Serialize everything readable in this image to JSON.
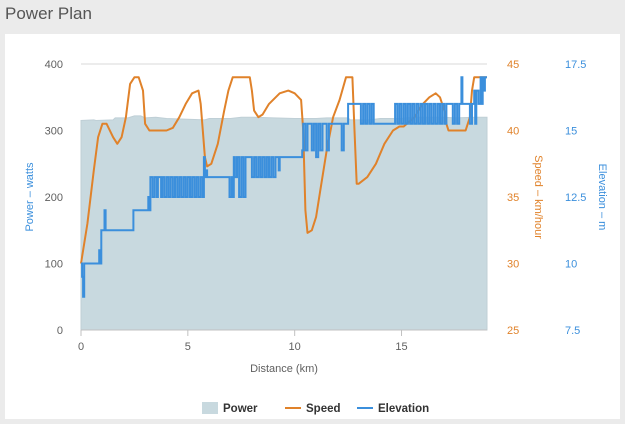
{
  "panel": {
    "title": "Power Plan"
  },
  "colors": {
    "power": "#c8d9df",
    "power_line": "#bfcfd6",
    "speed": "#e0822a",
    "elevation": "#3b8fdc",
    "grid": "#d9d9d9",
    "axis_text": "#606060"
  },
  "chart_data": {
    "type": "area",
    "xlabel": "Distance (km)",
    "xlim": [
      0,
      19
    ],
    "x_ticks": [
      "0",
      "5",
      "10",
      "15"
    ],
    "x_tick_values": [
      0,
      5,
      10,
      15
    ],
    "y_axes": [
      {
        "id": "power",
        "label": "Power – watts",
        "range": [
          0,
          400
        ],
        "ticks": [
          "0",
          "100",
          "200",
          "300",
          "400"
        ],
        "tick_values": [
          0,
          100,
          200,
          300,
          400
        ],
        "side": "left"
      },
      {
        "id": "speed",
        "label": "Speed – km/hour",
        "range": [
          25,
          45
        ],
        "ticks": [
          "25",
          "30",
          "35",
          "40",
          "45"
        ],
        "tick_values": [
          25,
          30,
          35,
          40,
          45
        ],
        "side": "right"
      },
      {
        "id": "elevation",
        "label": "Elevation – m",
        "range": [
          7.5,
          17.5
        ],
        "ticks": [
          "7.5",
          "10",
          "12.5",
          "15",
          "17.5"
        ],
        "tick_values": [
          7.5,
          10,
          12.5,
          15,
          17.5
        ],
        "side": "right"
      }
    ],
    "grid": true,
    "legend": {
      "placement": "bottom-center"
    },
    "series": [
      {
        "name": "Power",
        "type": "area",
        "axis": "power",
        "points": [
          [
            0,
            315
          ],
          [
            0.6,
            316
          ],
          [
            0.7,
            315
          ],
          [
            1.5,
            316
          ],
          [
            1.6,
            319
          ],
          [
            2.2,
            319
          ],
          [
            2.5,
            322
          ],
          [
            2.8,
            322
          ],
          [
            3.0,
            319
          ],
          [
            3.5,
            320
          ],
          [
            4.0,
            318
          ],
          [
            5.0,
            317
          ],
          [
            5.8,
            316
          ],
          [
            6.0,
            318
          ],
          [
            7.0,
            318
          ],
          [
            7.5,
            320
          ],
          [
            8.0,
            320
          ],
          [
            9.0,
            319
          ],
          [
            10.0,
            318
          ],
          [
            11.0,
            318
          ],
          [
            11.5,
            319
          ],
          [
            12.5,
            319
          ],
          [
            12.6,
            316
          ],
          [
            13.5,
            316
          ],
          [
            14.0,
            318
          ],
          [
            15.0,
            318
          ],
          [
            15.5,
            320
          ],
          [
            17.0,
            320
          ],
          [
            17.5,
            319
          ],
          [
            18.5,
            320
          ],
          [
            19,
            320
          ]
        ]
      },
      {
        "name": "Speed",
        "type": "line",
        "axis": "speed",
        "points": [
          [
            0,
            30
          ],
          [
            0.3,
            33
          ],
          [
            0.6,
            37
          ],
          [
            0.8,
            39.5
          ],
          [
            1.0,
            40.5
          ],
          [
            1.2,
            40.5
          ],
          [
            1.5,
            39.5
          ],
          [
            1.7,
            39
          ],
          [
            1.9,
            39.5
          ],
          [
            2.1,
            41
          ],
          [
            2.3,
            43.5
          ],
          [
            2.5,
            44
          ],
          [
            2.7,
            44
          ],
          [
            2.9,
            43
          ],
          [
            3.0,
            40.5
          ],
          [
            3.2,
            40
          ],
          [
            4.0,
            40
          ],
          [
            4.3,
            40.2
          ],
          [
            4.6,
            41
          ],
          [
            4.9,
            42
          ],
          [
            5.2,
            42.8
          ],
          [
            5.5,
            43
          ],
          [
            5.6,
            42
          ],
          [
            5.7,
            40
          ],
          [
            5.8,
            38
          ],
          [
            5.9,
            37.3
          ],
          [
            6.1,
            37.5
          ],
          [
            6.4,
            39
          ],
          [
            6.7,
            41.5
          ],
          [
            6.9,
            43
          ],
          [
            7.1,
            44
          ],
          [
            7.9,
            44
          ],
          [
            8.0,
            43
          ],
          [
            8.1,
            41.5
          ],
          [
            8.3,
            41
          ],
          [
            8.5,
            41.2
          ],
          [
            8.8,
            42
          ],
          [
            9.3,
            42.8
          ],
          [
            9.7,
            43
          ],
          [
            10.0,
            42.8
          ],
          [
            10.3,
            42.3
          ],
          [
            10.4,
            40
          ],
          [
            10.5,
            34
          ],
          [
            10.6,
            32.3
          ],
          [
            10.8,
            32.5
          ],
          [
            11.0,
            33.5
          ],
          [
            11.2,
            35.5
          ],
          [
            11.5,
            38.5
          ],
          [
            11.8,
            41
          ],
          [
            12.1,
            42.3
          ],
          [
            12.4,
            44
          ],
          [
            12.7,
            44
          ],
          [
            12.8,
            40
          ],
          [
            12.9,
            36
          ],
          [
            13.0,
            36
          ],
          [
            13.4,
            36.5
          ],
          [
            13.8,
            37.5
          ],
          [
            14.2,
            39
          ],
          [
            14.6,
            40
          ],
          [
            14.9,
            40.3
          ],
          [
            15.1,
            40.3
          ],
          [
            15.6,
            41
          ],
          [
            16.0,
            42
          ],
          [
            16.3,
            42.5
          ],
          [
            16.6,
            42.8
          ],
          [
            16.8,
            42.5
          ],
          [
            17.0,
            41.5
          ],
          [
            17.1,
            40.5
          ],
          [
            17.2,
            40
          ],
          [
            18.0,
            40
          ],
          [
            18.2,
            41
          ],
          [
            18.3,
            43
          ],
          [
            18.4,
            44
          ],
          [
            19,
            44
          ]
        ]
      },
      {
        "name": "Elevation",
        "type": "line",
        "axis": "elevation",
        "step": true,
        "points": [
          [
            0,
            10
          ],
          [
            0.05,
            9.5
          ],
          [
            0.1,
            8.75
          ],
          [
            0.15,
            10
          ],
          [
            0.8,
            10
          ],
          [
            0.85,
            10.5
          ],
          [
            0.9,
            10
          ],
          [
            0.95,
            11.25
          ],
          [
            1.05,
            11.25
          ],
          [
            1.1,
            12
          ],
          [
            1.15,
            11.25
          ],
          [
            2.4,
            11.25
          ],
          [
            2.45,
            12
          ],
          [
            3.1,
            12
          ],
          [
            3.15,
            12.5
          ],
          [
            3.2,
            12
          ],
          [
            3.25,
            13.25
          ],
          [
            3.35,
            12.5
          ],
          [
            3.45,
            13.25
          ],
          [
            3.55,
            12.5
          ],
          [
            3.6,
            13.25
          ],
          [
            3.7,
            13.25
          ],
          [
            3.75,
            12.5
          ],
          [
            3.8,
            13.25
          ],
          [
            3.9,
            12.5
          ],
          [
            4.0,
            13.25
          ],
          [
            4.1,
            12.5
          ],
          [
            4.2,
            13.25
          ],
          [
            4.3,
            12.5
          ],
          [
            4.4,
            13.25
          ],
          [
            4.5,
            12.5
          ],
          [
            4.6,
            13.25
          ],
          [
            4.7,
            12.5
          ],
          [
            4.8,
            13.25
          ],
          [
            4.9,
            12.5
          ],
          [
            5.0,
            13.25
          ],
          [
            5.1,
            12.5
          ],
          [
            5.2,
            13.25
          ],
          [
            5.3,
            12.5
          ],
          [
            5.4,
            13.25
          ],
          [
            5.5,
            12.5
          ],
          [
            5.6,
            13.25
          ],
          [
            5.7,
            12.5
          ],
          [
            5.75,
            14
          ],
          [
            5.8,
            13.25
          ],
          [
            5.85,
            13.5
          ],
          [
            5.9,
            13.25
          ],
          [
            6.9,
            13.25
          ],
          [
            6.95,
            12.5
          ],
          [
            7.05,
            13.25
          ],
          [
            7.1,
            12.5
          ],
          [
            7.15,
            14
          ],
          [
            7.2,
            13.25
          ],
          [
            7.3,
            14
          ],
          [
            7.4,
            12.5
          ],
          [
            7.5,
            14
          ],
          [
            7.6,
            12.5
          ],
          [
            7.7,
            14
          ],
          [
            7.85,
            14
          ],
          [
            7.9,
            14
          ],
          [
            8.0,
            13.25
          ],
          [
            8.1,
            14
          ],
          [
            8.2,
            13.25
          ],
          [
            8.3,
            14
          ],
          [
            8.4,
            13.25
          ],
          [
            8.5,
            14
          ],
          [
            8.6,
            13.25
          ],
          [
            8.7,
            14
          ],
          [
            8.8,
            13.25
          ],
          [
            8.9,
            14
          ],
          [
            9.0,
            13.25
          ],
          [
            9.1,
            14
          ],
          [
            9.2,
            14
          ],
          [
            9.25,
            13.5
          ],
          [
            9.3,
            14
          ],
          [
            10.3,
            14
          ],
          [
            10.35,
            14.25
          ],
          [
            10.4,
            15.25
          ],
          [
            10.5,
            14.25
          ],
          [
            10.6,
            15.25
          ],
          [
            10.7,
            15.25
          ],
          [
            10.8,
            14.25
          ],
          [
            10.9,
            15.25
          ],
          [
            11.0,
            14
          ],
          [
            11.1,
            15.25
          ],
          [
            11.2,
            14.25
          ],
          [
            11.3,
            15.25
          ],
          [
            11.4,
            15.25
          ],
          [
            11.5,
            14.25
          ],
          [
            11.6,
            15.25
          ],
          [
            12.0,
            15.25
          ],
          [
            12.1,
            15.25
          ],
          [
            12.2,
            14.25
          ],
          [
            12.3,
            15.25
          ],
          [
            12.4,
            15.25
          ],
          [
            12.5,
            16
          ],
          [
            13.0,
            16
          ],
          [
            13.1,
            15.25
          ],
          [
            13.2,
            16
          ],
          [
            13.3,
            15.25
          ],
          [
            13.4,
            16
          ],
          [
            13.5,
            15.25
          ],
          [
            13.6,
            16
          ],
          [
            13.7,
            15.25
          ],
          [
            13.8,
            15.25
          ],
          [
            14.6,
            15.25
          ],
          [
            14.7,
            16
          ],
          [
            14.8,
            15.25
          ],
          [
            14.9,
            16
          ],
          [
            15.0,
            15.25
          ],
          [
            15.1,
            16
          ],
          [
            15.2,
            15.25
          ],
          [
            15.3,
            16
          ],
          [
            15.4,
            15.25
          ],
          [
            15.5,
            16
          ],
          [
            15.6,
            15.25
          ],
          [
            15.7,
            16
          ],
          [
            15.8,
            15.25
          ],
          [
            15.9,
            16
          ],
          [
            16.0,
            15.25
          ],
          [
            16.1,
            16
          ],
          [
            16.2,
            15.25
          ],
          [
            16.3,
            16
          ],
          [
            16.4,
            15.25
          ],
          [
            16.5,
            16
          ],
          [
            16.6,
            15.25
          ],
          [
            16.7,
            16
          ],
          [
            16.8,
            15.25
          ],
          [
            16.9,
            16
          ],
          [
            17.0,
            15.25
          ],
          [
            17.1,
            16
          ],
          [
            17.2,
            16
          ],
          [
            17.3,
            16
          ],
          [
            17.4,
            15.25
          ],
          [
            17.5,
            16
          ],
          [
            17.6,
            15.25
          ],
          [
            17.7,
            16
          ],
          [
            17.8,
            17
          ],
          [
            17.85,
            16
          ],
          [
            18.0,
            16
          ],
          [
            18.2,
            15.25
          ],
          [
            18.3,
            16
          ],
          [
            18.4,
            16.5
          ],
          [
            18.45,
            15.25
          ],
          [
            18.5,
            16.5
          ],
          [
            18.6,
            16
          ],
          [
            18.7,
            17
          ],
          [
            18.75,
            16
          ],
          [
            18.8,
            17
          ],
          [
            18.85,
            16.5
          ],
          [
            18.9,
            17
          ],
          [
            19,
            17
          ]
        ]
      }
    ]
  }
}
